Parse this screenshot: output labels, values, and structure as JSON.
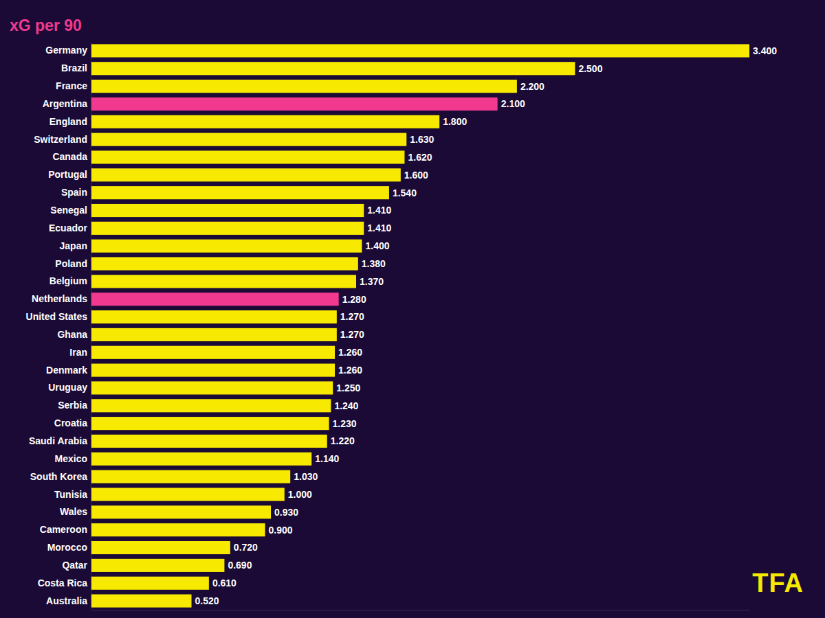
{
  "chart_data": {
    "type": "bar",
    "title": "xG per 90",
    "orientation": "horizontal",
    "categories": [
      "Germany",
      "Brazil",
      "France",
      "Argentina",
      "England",
      "Switzerland",
      "Canada",
      "Portugal",
      "Spain",
      "Senegal",
      "Ecuador",
      "Japan",
      "Poland",
      "Belgium",
      "Netherlands",
      "United States",
      "Ghana",
      "Iran",
      "Denmark",
      "Uruguay",
      "Serbia",
      "Croatia",
      "Saudi Arabia",
      "Mexico",
      "South Korea",
      "Tunisia",
      "Wales",
      "Cameroon",
      "Morocco",
      "Qatar",
      "Costa Rica",
      "Australia"
    ],
    "values": [
      3.4,
      2.5,
      2.2,
      2.1,
      1.8,
      1.63,
      1.62,
      1.6,
      1.54,
      1.41,
      1.41,
      1.4,
      1.38,
      1.37,
      1.28,
      1.27,
      1.27,
      1.26,
      1.26,
      1.25,
      1.24,
      1.23,
      1.22,
      1.14,
      1.03,
      1.0,
      0.93,
      0.9,
      0.72,
      0.69,
      0.61,
      0.52
    ],
    "value_labels": [
      "3.400",
      "2.500",
      "2.200",
      "2.100",
      "1.800",
      "1.630",
      "1.620",
      "1.600",
      "1.540",
      "1.410",
      "1.410",
      "1.400",
      "1.380",
      "1.370",
      "1.280",
      "1.270",
      "1.270",
      "1.260",
      "1.260",
      "1.250",
      "1.240",
      "1.230",
      "1.220",
      "1.140",
      "1.030",
      "1.000",
      "0.930",
      "0.900",
      "0.720",
      "0.690",
      "0.610",
      "0.520"
    ],
    "colors": [
      "#f7ea00",
      "#f7ea00",
      "#f7ea00",
      "#f0398f",
      "#f7ea00",
      "#f7ea00",
      "#f7ea00",
      "#f7ea00",
      "#f7ea00",
      "#f7ea00",
      "#f7ea00",
      "#f7ea00",
      "#f7ea00",
      "#f7ea00",
      "#f0398f",
      "#f7ea00",
      "#f7ea00",
      "#f7ea00",
      "#f7ea00",
      "#f7ea00",
      "#f7ea00",
      "#f7ea00",
      "#f7ea00",
      "#f7ea00",
      "#f7ea00",
      "#f7ea00",
      "#f7ea00",
      "#f7ea00",
      "#f7ea00",
      "#f7ea00",
      "#f7ea00",
      "#f7ea00"
    ],
    "xlim": [
      0,
      3.4
    ],
    "data_labels": true,
    "tick_labels": "y",
    "grid": false,
    "annotations": [
      "TFA"
    ]
  }
}
